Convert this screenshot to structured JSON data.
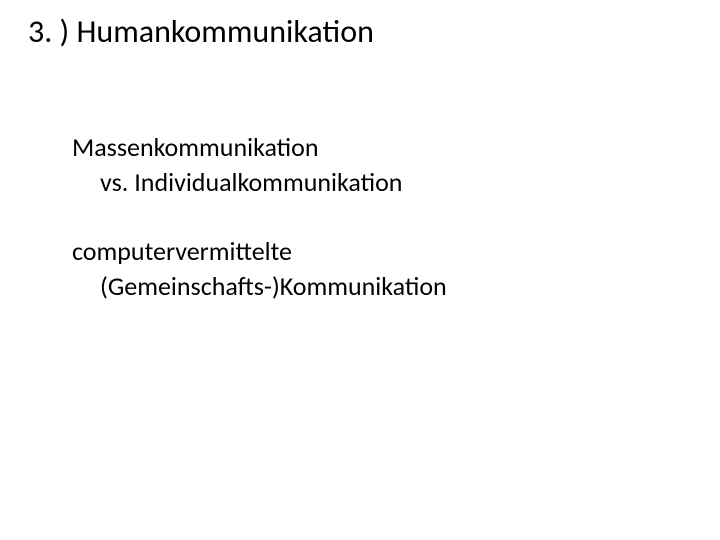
{
  "slide": {
    "title": "3. ) Humankommunikation",
    "block1": {
      "line1": "Massenkommunikation",
      "line2": "vs. Individualkommunikation"
    },
    "block2": {
      "line1": "computervermittelte",
      "line2": "(Gemeinschafts-)Kommunikation"
    }
  },
  "style": {
    "background_color": "#ffffff",
    "text_color": "#000000",
    "title_fontsize": 32,
    "body_fontsize": 26,
    "font_family": "Calibri"
  }
}
